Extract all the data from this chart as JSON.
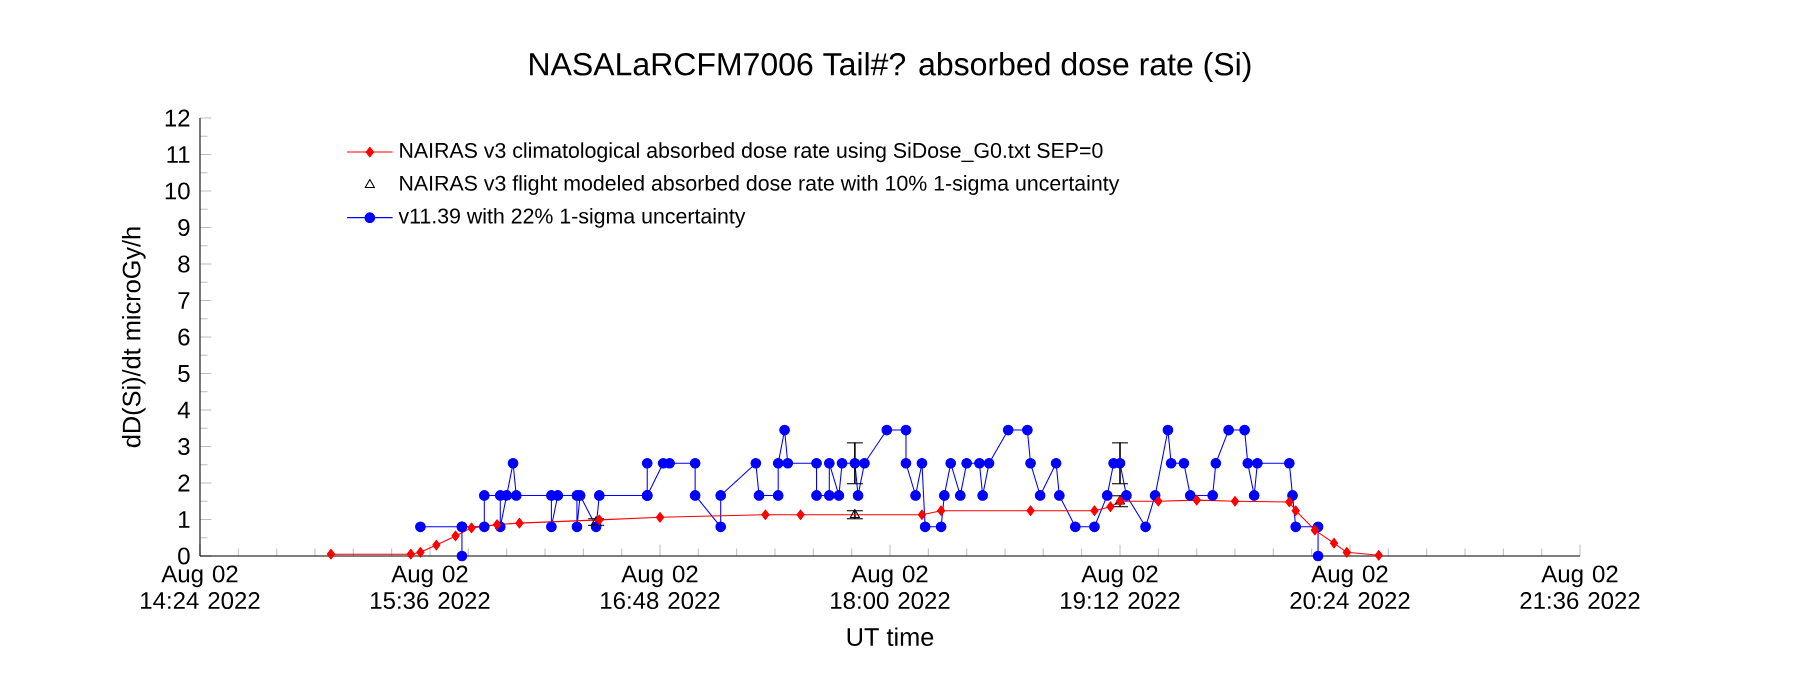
{
  "chart_data": {
    "type": "line",
    "title": "NASALaRCFM7006 Tail#? absorbed dose rate (Si)",
    "xlabel": "UT time",
    "ylabel": "dD(Si)/dt microGy/h",
    "xlim": [
      "2022-08-02T14:24",
      "2022-08-02T21:36"
    ],
    "ylim": [
      0,
      12
    ],
    "xticks": [
      {
        "value": "2022-08-02T14:24",
        "label": "Aug 02 14:24 2022"
      },
      {
        "value": "2022-08-02T15:36",
        "label": "Aug 02 15:36 2022"
      },
      {
        "value": "2022-08-02T16:48",
        "label": "Aug 02 16:48 2022"
      },
      {
        "value": "2022-08-02T18:00",
        "label": "Aug 02 18:00 2022"
      },
      {
        "value": "2022-08-02T19:12",
        "label": "Aug 02 19:12 2022"
      },
      {
        "value": "2022-08-02T20:24",
        "label": "Aug 02 20:24 2022"
      },
      {
        "value": "2022-08-02T21:36",
        "label": "Aug 02 21:36 2022"
      }
    ],
    "yticks": [
      0,
      1,
      2,
      3,
      4,
      5,
      6,
      7,
      8,
      9,
      10,
      11,
      12
    ],
    "grid": false,
    "legend": "top left",
    "series": [
      {
        "name": "NAIRAS v3 climatological absorbed dose rate using SiDose_G0.txt SEP=0",
        "marker": "diamond",
        "color": "#ff0000",
        "x": [
          "2022-08-02T15:05",
          "2022-08-02T15:30",
          "2022-08-02T15:33",
          "2022-08-02T15:38",
          "2022-08-02T15:44",
          "2022-08-02T15:49",
          "2022-08-02T15:57",
          "2022-08-02T16:04",
          "2022-08-02T16:29",
          "2022-08-02T16:48",
          "2022-08-02T17:21",
          "2022-08-02T17:32",
          "2022-08-02T18:10",
          "2022-08-02T18:16",
          "2022-08-02T18:44",
          "2022-08-02T19:04",
          "2022-08-02T19:09",
          "2022-08-02T19:12",
          "2022-08-02T19:24",
          "2022-08-02T19:36",
          "2022-08-02T19:48",
          "2022-08-02T20:05",
          "2022-08-02T20:07",
          "2022-08-02T20:13",
          "2022-08-02T20:19",
          "2022-08-02T20:23",
          "2022-08-02T20:33"
        ],
        "values": [
          0.05,
          0.05,
          0.1,
          0.3,
          0.55,
          0.77,
          0.86,
          0.9,
          0.99,
          1.06,
          1.13,
          1.13,
          1.13,
          1.24,
          1.24,
          1.24,
          1.35,
          1.5,
          1.5,
          1.53,
          1.5,
          1.48,
          1.24,
          0.71,
          0.35,
          0.1,
          0.02
        ]
      },
      {
        "name": "NAIRAS v3 flight modeled absorbed dose rate with 10% 1-sigma uncertainty",
        "type": "scatter",
        "marker": "triangle",
        "color": "#000000",
        "x": [
          "2022-08-02T16:28",
          "2022-08-02T17:49",
          "2022-08-02T19:12"
        ],
        "values": [
          0.93,
          1.13,
          1.5
        ],
        "errors": [
          0.09,
          0.11,
          0.15
        ]
      },
      {
        "name": "v11.39 with 22% 1-sigma uncertainty",
        "marker": "circle",
        "color": "#0000ff",
        "x": [
          "2022-08-02T15:33",
          "2022-08-02T15:46",
          "2022-08-02T15:46",
          "2022-08-02T15:46",
          "2022-08-02T15:53",
          "2022-08-02T15:53",
          "2022-08-02T15:58",
          "2022-08-02T15:58",
          "2022-08-02T16:00",
          "2022-08-02T16:02",
          "2022-08-02T16:03",
          "2022-08-02T16:14",
          "2022-08-02T16:14",
          "2022-08-02T16:16",
          "2022-08-02T16:22",
          "2022-08-02T16:22",
          "2022-08-02T16:23",
          "2022-08-02T16:28",
          "2022-08-02T16:29",
          "2022-08-02T16:44",
          "2022-08-02T16:44",
          "2022-08-02T16:44",
          "2022-08-02T16:49",
          "2022-08-02T16:51",
          "2022-08-02T16:59",
          "2022-08-02T16:59",
          "2022-08-02T17:07",
          "2022-08-02T17:07",
          "2022-08-02T17:18",
          "2022-08-02T17:19",
          "2022-08-02T17:25",
          "2022-08-02T17:25",
          "2022-08-02T17:27",
          "2022-08-02T17:28",
          "2022-08-02T17:37",
          "2022-08-02T17:37",
          "2022-08-02T17:41",
          "2022-08-02T17:41",
          "2022-08-02T17:44",
          "2022-08-02T17:45",
          "2022-08-02T17:49",
          "2022-08-02T17:50",
          "2022-08-02T17:52",
          "2022-08-02T17:59",
          "2022-08-02T18:05",
          "2022-08-02T18:05",
          "2022-08-02T18:08",
          "2022-08-02T18:10",
          "2022-08-02T18:11",
          "2022-08-02T18:16",
          "2022-08-02T18:17",
          "2022-08-02T18:19",
          "2022-08-02T18:22",
          "2022-08-02T18:24",
          "2022-08-02T18:28",
          "2022-08-02T18:29",
          "2022-08-02T18:31",
          "2022-08-02T18:37",
          "2022-08-02T18:43",
          "2022-08-02T18:44",
          "2022-08-02T18:47",
          "2022-08-02T18:52",
          "2022-08-02T18:53",
          "2022-08-02T18:58",
          "2022-08-02T19:04",
          "2022-08-02T19:08",
          "2022-08-02T19:10",
          "2022-08-02T19:12",
          "2022-08-02T19:14",
          "2022-08-02T19:20",
          "2022-08-02T19:23",
          "2022-08-02T19:27",
          "2022-08-02T19:28",
          "2022-08-02T19:32",
          "2022-08-02T19:34",
          "2022-08-02T19:41",
          "2022-08-02T19:42",
          "2022-08-02T19:46",
          "2022-08-02T19:51",
          "2022-08-02T19:52",
          "2022-08-02T19:54",
          "2022-08-02T19:55",
          "2022-08-02T20:05",
          "2022-08-02T20:06",
          "2022-08-02T20:07",
          "2022-08-02T20:14",
          "2022-08-02T20:14"
        ],
        "values": [
          0.8,
          0.8,
          0.0,
          0.8,
          0.8,
          1.66,
          1.66,
          0.8,
          1.66,
          2.54,
          1.66,
          1.66,
          0.8,
          1.66,
          1.66,
          0.8,
          1.66,
          0.8,
          1.66,
          1.66,
          2.54,
          1.66,
          2.54,
          2.54,
          2.54,
          1.66,
          0.8,
          1.66,
          2.54,
          1.66,
          1.66,
          2.54,
          3.45,
          2.54,
          2.54,
          1.66,
          1.66,
          2.54,
          1.66,
          2.54,
          2.54,
          1.66,
          2.54,
          3.45,
          3.45,
          2.54,
          1.66,
          2.54,
          0.8,
          0.8,
          1.66,
          2.54,
          1.66,
          2.54,
          2.54,
          1.66,
          2.54,
          3.45,
          3.45,
          2.54,
          1.66,
          2.54,
          1.66,
          0.8,
          0.8,
          1.66,
          2.54,
          2.54,
          1.66,
          0.8,
          1.66,
          3.45,
          2.54,
          2.54,
          1.66,
          1.66,
          2.54,
          3.45,
          3.45,
          2.54,
          1.66,
          2.54,
          2.54,
          1.66,
          0.8,
          0.8,
          0.0
        ],
        "errors": [
          null,
          null,
          null,
          null,
          null,
          null,
          null,
          null,
          null,
          null,
          null,
          null,
          null,
          null,
          null,
          null,
          null,
          null,
          null,
          null,
          null,
          null,
          null,
          null,
          null,
          null,
          null,
          null,
          null,
          null,
          null,
          null,
          null,
          null,
          null,
          null,
          null,
          null,
          null,
          null,
          0.56,
          null,
          null,
          null,
          null,
          null,
          null,
          null,
          null,
          null,
          null,
          null,
          null,
          null,
          null,
          null,
          null,
          null,
          null,
          null,
          null,
          null,
          null,
          null,
          null,
          null,
          null,
          0.56,
          null,
          null,
          null,
          null,
          null,
          null,
          null,
          null,
          null,
          null,
          null,
          null,
          null,
          null,
          null,
          null,
          null,
          null,
          null
        ]
      }
    ]
  }
}
